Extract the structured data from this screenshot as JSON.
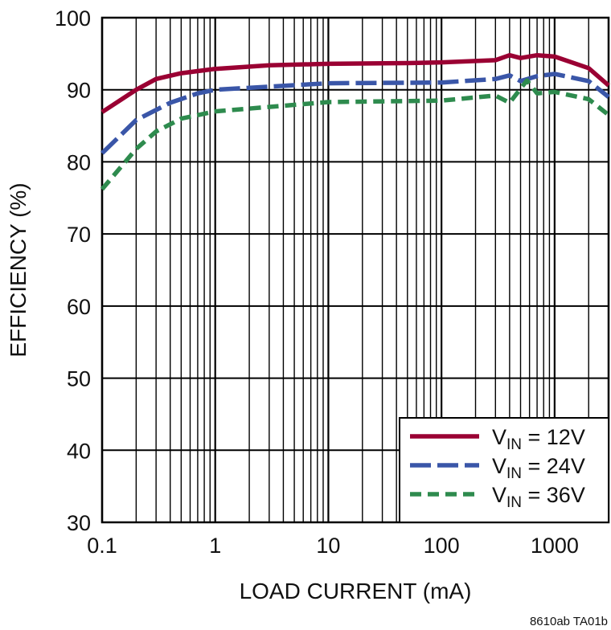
{
  "chart_data": {
    "type": "line",
    "xlabel": "LOAD CURRENT (mA)",
    "ylabel": "EFFICIENCY (%)",
    "x_scale": "log",
    "xlim": [
      0.1,
      3000
    ],
    "ylim": [
      30,
      100
    ],
    "x_ticks": [
      "0.1",
      "1",
      "10",
      "100",
      "1000"
    ],
    "y_ticks": [
      "30",
      "40",
      "50",
      "60",
      "70",
      "80",
      "90",
      "100"
    ],
    "grid": true,
    "legend_position": "bottom-right",
    "footnote": "8610ab TA01b",
    "series": [
      {
        "name": "VIN = 12V",
        "name_main": "V",
        "name_sub": "IN",
        "name_rest": " = 12V",
        "color": "#9a0033",
        "dash": "solid",
        "x": [
          0.1,
          0.2,
          0.3,
          0.5,
          1,
          3,
          10,
          50,
          100,
          300,
          400,
          500,
          700,
          1000,
          2000,
          3000
        ],
        "y": [
          86.9,
          90,
          91.5,
          92.3,
          92.9,
          93.4,
          93.6,
          93.7,
          93.8,
          94.1,
          94.8,
          94.4,
          94.8,
          94.6,
          93,
          90.6
        ]
      },
      {
        "name": "VIN = 24V",
        "name_main": "V",
        "name_sub": "IN",
        "name_rest": " = 24V",
        "color": "#3a56a8",
        "dash": "long-dash",
        "x": [
          0.1,
          0.2,
          0.4,
          0.7,
          1,
          10,
          100,
          300,
          400,
          500,
          700,
          1000,
          2000,
          3000
        ],
        "y": [
          81.2,
          85.8,
          88.2,
          89.5,
          90,
          90.9,
          91,
          91.5,
          92,
          91.2,
          91.9,
          92.2,
          91.2,
          89
        ]
      },
      {
        "name": "VIN = 36V",
        "name_main": "V",
        "name_sub": "IN",
        "name_rest": " = 36V",
        "color": "#2e8b4e",
        "dash": "short-dash",
        "x": [
          0.1,
          0.2,
          0.3,
          0.5,
          1,
          10,
          100,
          300,
          400,
          570,
          700,
          1000,
          2000,
          3000
        ],
        "y": [
          76.2,
          81.8,
          84.2,
          86,
          87,
          88.3,
          88.5,
          89.2,
          88.2,
          91.3,
          89.5,
          89.7,
          88.7,
          86.5
        ]
      }
    ]
  }
}
